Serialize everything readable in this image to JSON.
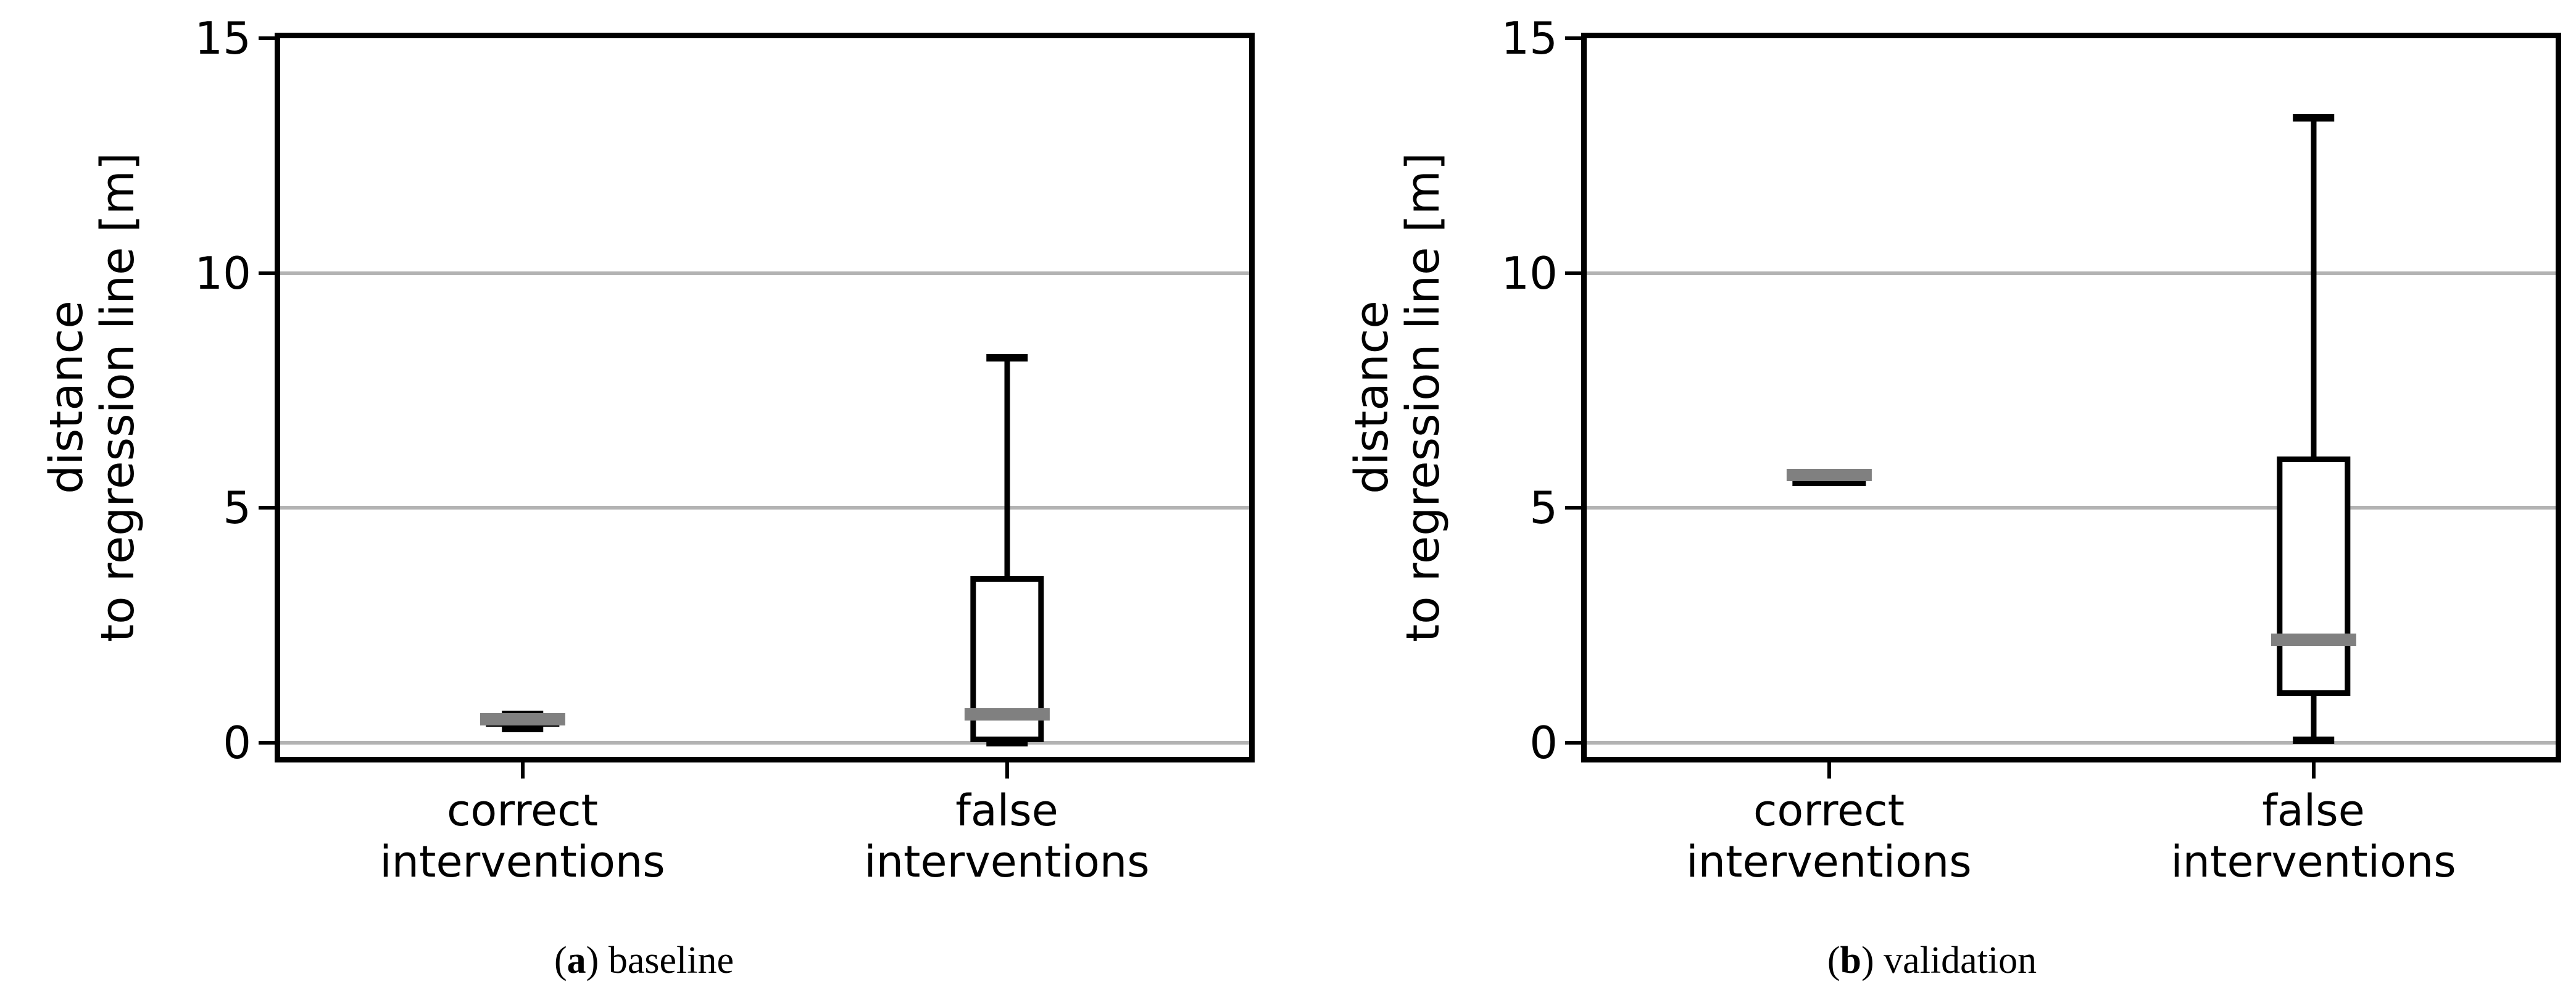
{
  "figure": {
    "background": "#ffffff",
    "colors": {
      "box_edge": "#000000",
      "median": "#808080",
      "gridline": "#b3b3b3",
      "text": "#000000"
    }
  },
  "chart_data": [
    {
      "type": "boxplot",
      "caption": {
        "open": "(",
        "letter": "a",
        "close": ")",
        "text": " baseline"
      },
      "ylabel": "distance\nto regression line [m]",
      "ylim": [
        -0.3,
        15
      ],
      "grid": true,
      "grid_values": [
        0,
        5,
        10
      ],
      "yticks": [
        {
          "label": "15",
          "value": 15
        },
        {
          "label": "10",
          "value": 10
        },
        {
          "label": "5",
          "value": 5
        },
        {
          "label": "0",
          "value": 0
        }
      ],
      "positions": [
        0.25,
        0.75
      ],
      "categories": [
        "correct\ninterventions",
        "false\ninterventions"
      ],
      "boxes": [
        {
          "category": "correct interventions",
          "whislo": 0.3,
          "q1": 0.34,
          "med": 0.5,
          "q3": 0.6,
          "whishi": 0.6
        },
        {
          "category": "false interventions",
          "whislo": 0.0,
          "q1": 0.02,
          "med": 0.6,
          "q3": 3.55,
          "whishi": 8.2
        }
      ]
    },
    {
      "type": "boxplot",
      "caption": {
        "open": "(",
        "letter": "b",
        "close": ")",
        "text": " validation"
      },
      "ylabel": "distance\nto regression line [m]",
      "ylim": [
        -0.3,
        15
      ],
      "grid": true,
      "grid_values": [
        0,
        5,
        10
      ],
      "yticks": [
        {
          "label": "15",
          "value": 15
        },
        {
          "label": "10",
          "value": 10
        },
        {
          "label": "5",
          "value": 5
        },
        {
          "label": "0",
          "value": 0
        }
      ],
      "positions": [
        0.25,
        0.75
      ],
      "categories": [
        "correct\ninterventions",
        "false\ninterventions"
      ],
      "boxes": [
        {
          "category": "correct interventions",
          "whislo": 5.7,
          "q1": 5.7,
          "med": 5.7,
          "q3": 5.7,
          "whishi": 5.7
        },
        {
          "category": "false interventions",
          "whislo": 0.05,
          "q1": 1.0,
          "med": 2.2,
          "q3": 6.1,
          "whishi": 13.3
        }
      ]
    }
  ]
}
